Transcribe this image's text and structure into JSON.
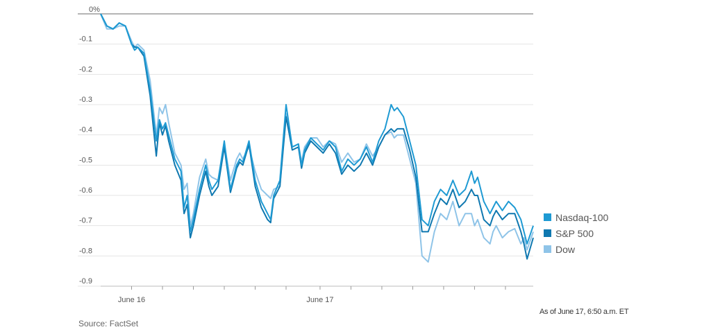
{
  "chart_data": {
    "type": "line",
    "y_unit": "%",
    "ylim": [
      -0.9,
      0
    ],
    "yticks": [
      0,
      -0.1,
      -0.2,
      -0.3,
      -0.4,
      -0.5,
      -0.6,
      -0.7,
      -0.8,
      -0.9
    ],
    "ytick_labels": [
      "0%",
      "-0.1",
      "-0.2",
      "-0.3",
      "-0.4",
      "-0.5",
      "-0.6",
      "-0.7",
      "-0.8",
      "-0.9"
    ],
    "xlim": [
      0,
      140
    ],
    "xtick_labels": [
      {
        "label": "June 16",
        "x": 10
      },
      {
        "label": "June 17",
        "x": 71
      }
    ],
    "minor_ticks": [
      10,
      20,
      30,
      40,
      50,
      60,
      71,
      81,
      91,
      101,
      111,
      121,
      131
    ],
    "grid": true,
    "legend_position": "right",
    "series": [
      {
        "name": "Nasdaq-100",
        "color": "#1e9ad3",
        "x": [
          0,
          2,
          4,
          6,
          8,
          10,
          11,
          12,
          14,
          16,
          18,
          19,
          20,
          21,
          22,
          24,
          26,
          27,
          28,
          29,
          30,
          32,
          34,
          35,
          36,
          38,
          40,
          42,
          44,
          45,
          46,
          48,
          50,
          52,
          54,
          55,
          56,
          58,
          60,
          62,
          64,
          65,
          66,
          68,
          70,
          72,
          74,
          76,
          78,
          80,
          82,
          84,
          86,
          88,
          90,
          92,
          94,
          95,
          96,
          98,
          100,
          102,
          104,
          106,
          108,
          110,
          112,
          114,
          116,
          118,
          120,
          121,
          122,
          124,
          126,
          127,
          128,
          130,
          132,
          134,
          136,
          137,
          138,
          140
        ],
        "y": [
          0,
          -0.04,
          -0.05,
          -0.03,
          -0.04,
          -0.1,
          -0.12,
          -0.11,
          -0.13,
          -0.25,
          -0.42,
          -0.35,
          -0.38,
          -0.36,
          -0.4,
          -0.48,
          -0.52,
          -0.64,
          -0.6,
          -0.72,
          -0.68,
          -0.58,
          -0.5,
          -0.55,
          -0.58,
          -0.55,
          -0.42,
          -0.58,
          -0.5,
          -0.48,
          -0.49,
          -0.42,
          -0.55,
          -0.62,
          -0.66,
          -0.68,
          -0.6,
          -0.55,
          -0.3,
          -0.44,
          -0.43,
          -0.5,
          -0.45,
          -0.41,
          -0.43,
          -0.45,
          -0.42,
          -0.44,
          -0.52,
          -0.48,
          -0.5,
          -0.48,
          -0.44,
          -0.49,
          -0.42,
          -0.38,
          -0.3,
          -0.32,
          -0.31,
          -0.34,
          -0.42,
          -0.5,
          -0.68,
          -0.7,
          -0.62,
          -0.58,
          -0.6,
          -0.55,
          -0.6,
          -0.58,
          -0.52,
          -0.56,
          -0.54,
          -0.62,
          -0.66,
          -0.64,
          -0.62,
          -0.65,
          -0.62,
          -0.64,
          -0.68,
          -0.72,
          -0.76,
          -0.7
        ]
      },
      {
        "name": "S&P 500",
        "color": "#0f78b0",
        "x": [
          0,
          2,
          4,
          6,
          8,
          10,
          11,
          12,
          14,
          16,
          18,
          19,
          20,
          21,
          22,
          24,
          26,
          27,
          28,
          29,
          30,
          32,
          34,
          35,
          36,
          38,
          40,
          42,
          44,
          45,
          46,
          48,
          50,
          52,
          54,
          55,
          56,
          58,
          60,
          62,
          64,
          65,
          66,
          68,
          70,
          72,
          74,
          76,
          78,
          80,
          82,
          84,
          86,
          88,
          90,
          92,
          94,
          95,
          96,
          98,
          100,
          102,
          104,
          106,
          108,
          110,
          112,
          114,
          116,
          118,
          120,
          121,
          122,
          124,
          126,
          127,
          128,
          130,
          132,
          134,
          136,
          137,
          138,
          140
        ],
        "y": [
          0,
          -0.04,
          -0.05,
          -0.03,
          -0.04,
          -0.1,
          -0.11,
          -0.11,
          -0.14,
          -0.27,
          -0.47,
          -0.36,
          -0.4,
          -0.37,
          -0.42,
          -0.5,
          -0.55,
          -0.66,
          -0.63,
          -0.74,
          -0.7,
          -0.6,
          -0.52,
          -0.57,
          -0.6,
          -0.57,
          -0.44,
          -0.59,
          -0.51,
          -0.49,
          -0.5,
          -0.43,
          -0.57,
          -0.64,
          -0.68,
          -0.69,
          -0.61,
          -0.57,
          -0.34,
          -0.45,
          -0.44,
          -0.51,
          -0.46,
          -0.42,
          -0.44,
          -0.46,
          -0.43,
          -0.46,
          -0.53,
          -0.5,
          -0.52,
          -0.5,
          -0.46,
          -0.5,
          -0.44,
          -0.4,
          -0.38,
          -0.39,
          -0.38,
          -0.38,
          -0.45,
          -0.54,
          -0.72,
          -0.72,
          -0.66,
          -0.61,
          -0.63,
          -0.58,
          -0.64,
          -0.62,
          -0.58,
          -0.6,
          -0.6,
          -0.68,
          -0.7,
          -0.67,
          -0.65,
          -0.68,
          -0.66,
          -0.66,
          -0.72,
          -0.76,
          -0.81,
          -0.74
        ]
      },
      {
        "name": "Dow",
        "color": "#8fc4e8",
        "x": [
          0,
          2,
          4,
          6,
          8,
          10,
          11,
          12,
          14,
          16,
          18,
          19,
          20,
          21,
          22,
          24,
          26,
          27,
          28,
          29,
          30,
          32,
          34,
          35,
          36,
          38,
          40,
          42,
          44,
          45,
          46,
          48,
          50,
          52,
          54,
          55,
          56,
          58,
          60,
          62,
          64,
          65,
          66,
          68,
          70,
          72,
          74,
          76,
          78,
          80,
          82,
          84,
          86,
          88,
          90,
          92,
          94,
          95,
          96,
          98,
          100,
          102,
          104,
          106,
          108,
          110,
          112,
          114,
          116,
          118,
          120,
          121,
          122,
          124,
          126,
          127,
          128,
          130,
          132,
          134,
          136,
          137,
          138,
          140
        ],
        "y": [
          0,
          -0.05,
          -0.05,
          -0.04,
          -0.04,
          -0.09,
          -0.11,
          -0.1,
          -0.12,
          -0.22,
          -0.4,
          -0.31,
          -0.33,
          -0.3,
          -0.36,
          -0.46,
          -0.5,
          -0.58,
          -0.56,
          -0.7,
          -0.66,
          -0.54,
          -0.48,
          -0.53,
          -0.54,
          -0.55,
          -0.43,
          -0.55,
          -0.48,
          -0.46,
          -0.48,
          -0.44,
          -0.52,
          -0.58,
          -0.6,
          -0.61,
          -0.58,
          -0.57,
          -0.33,
          -0.44,
          -0.43,
          -0.49,
          -0.44,
          -0.41,
          -0.41,
          -0.44,
          -0.42,
          -0.43,
          -0.49,
          -0.46,
          -0.49,
          -0.48,
          -0.43,
          -0.47,
          -0.44,
          -0.4,
          -0.39,
          -0.41,
          -0.4,
          -0.4,
          -0.48,
          -0.56,
          -0.8,
          -0.82,
          -0.72,
          -0.66,
          -0.68,
          -0.62,
          -0.7,
          -0.66,
          -0.66,
          -0.7,
          -0.68,
          -0.74,
          -0.76,
          -0.72,
          -0.7,
          -0.74,
          -0.72,
          -0.71,
          -0.76,
          -0.74,
          -0.78,
          -0.72
        ]
      }
    ]
  },
  "legend": [
    {
      "label": "Nasdaq-100",
      "color": "#1e9ad3"
    },
    {
      "label": "S&P 500",
      "color": "#0f78b0"
    },
    {
      "label": "Dow",
      "color": "#8fc4e8"
    }
  ],
  "source": "Source: FactSet",
  "as_of": "As of June 17, 6:50 a.m. ET"
}
